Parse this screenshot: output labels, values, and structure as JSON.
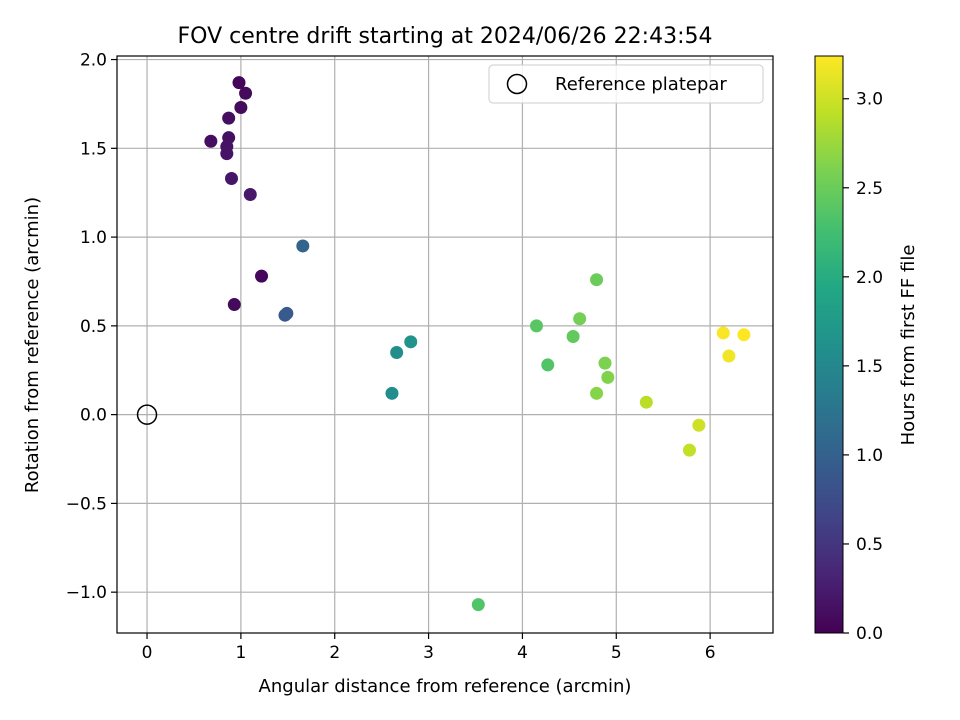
{
  "chart_data": {
    "type": "scatter",
    "title": "FOV centre drift starting at 2024/06/26 22:43:54",
    "xlabel": "Angular distance from reference (arcmin)",
    "ylabel": "Rotation from reference (arcmin)",
    "xlim": [
      -0.32,
      6.67
    ],
    "ylim": [
      -1.23,
      2.02
    ],
    "xticks": [
      0,
      1,
      2,
      3,
      4,
      5,
      6
    ],
    "xtick_labels": [
      "0",
      "1",
      "2",
      "3",
      "4",
      "5",
      "6"
    ],
    "yticks": [
      -1.0,
      -0.5,
      0.0,
      0.5,
      1.0,
      1.5,
      2.0
    ],
    "ytick_labels": [
      "−1.0",
      "−0.5",
      "0.0",
      "0.5",
      "1.0",
      "1.5",
      "2.0"
    ],
    "grid": true,
    "legend": {
      "position": "top-right",
      "entries": [
        "Reference platepar"
      ]
    },
    "reference_point": {
      "x": 0,
      "y": 0,
      "label": "Reference platepar"
    },
    "colorbar": {
      "label": "Hours from first FF file",
      "range": [
        0.0,
        3.24
      ],
      "ticks": [
        0.0,
        0.5,
        1.0,
        1.5,
        2.0,
        2.5,
        3.0
      ],
      "tick_labels": [
        "0.0",
        "0.5",
        "1.0",
        "1.5",
        "2.0",
        "2.5",
        "3.0"
      ],
      "colormap": "viridis"
    },
    "points": [
      {
        "x": 0.98,
        "y": 1.87,
        "hours": 0.05
      },
      {
        "x": 1.05,
        "y": 1.81,
        "hours": 0.08
      },
      {
        "x": 1.0,
        "y": 1.73,
        "hours": 0.1
      },
      {
        "x": 0.87,
        "y": 1.67,
        "hours": 0.12
      },
      {
        "x": 0.87,
        "y": 1.56,
        "hours": 0.14
      },
      {
        "x": 0.68,
        "y": 1.54,
        "hours": 0.12
      },
      {
        "x": 0.85,
        "y": 1.51,
        "hours": 0.16
      },
      {
        "x": 0.85,
        "y": 1.47,
        "hours": 0.18
      },
      {
        "x": 0.9,
        "y": 1.33,
        "hours": 0.2
      },
      {
        "x": 1.1,
        "y": 1.24,
        "hours": 0.22
      },
      {
        "x": 1.22,
        "y": 0.78,
        "hours": 0.06
      },
      {
        "x": 0.93,
        "y": 0.62,
        "hours": 0.08
      },
      {
        "x": 1.47,
        "y": 0.56,
        "hours": 0.88
      },
      {
        "x": 1.49,
        "y": 0.57,
        "hours": 0.92
      },
      {
        "x": 1.66,
        "y": 0.95,
        "hours": 1.05
      },
      {
        "x": 2.61,
        "y": 0.12,
        "hours": 1.55
      },
      {
        "x": 2.66,
        "y": 0.35,
        "hours": 1.58
      },
      {
        "x": 2.81,
        "y": 0.41,
        "hours": 1.65
      },
      {
        "x": 3.53,
        "y": -1.07,
        "hours": 2.35
      },
      {
        "x": 4.15,
        "y": 0.5,
        "hours": 2.4
      },
      {
        "x": 4.27,
        "y": 0.28,
        "hours": 2.35
      },
      {
        "x": 4.54,
        "y": 0.44,
        "hours": 2.45
      },
      {
        "x": 4.61,
        "y": 0.54,
        "hours": 2.55
      },
      {
        "x": 4.79,
        "y": 0.76,
        "hours": 2.5
      },
      {
        "x": 4.79,
        "y": 0.12,
        "hours": 2.65
      },
      {
        "x": 4.88,
        "y": 0.29,
        "hours": 2.6
      },
      {
        "x": 4.91,
        "y": 0.21,
        "hours": 2.62
      },
      {
        "x": 5.32,
        "y": 0.07,
        "hours": 2.9
      },
      {
        "x": 5.78,
        "y": -0.2,
        "hours": 2.95
      },
      {
        "x": 5.88,
        "y": -0.06,
        "hours": 3.0
      },
      {
        "x": 6.14,
        "y": 0.46,
        "hours": 3.22
      },
      {
        "x": 6.2,
        "y": 0.33,
        "hours": 3.18
      },
      {
        "x": 6.36,
        "y": 0.45,
        "hours": 3.24
      }
    ]
  }
}
